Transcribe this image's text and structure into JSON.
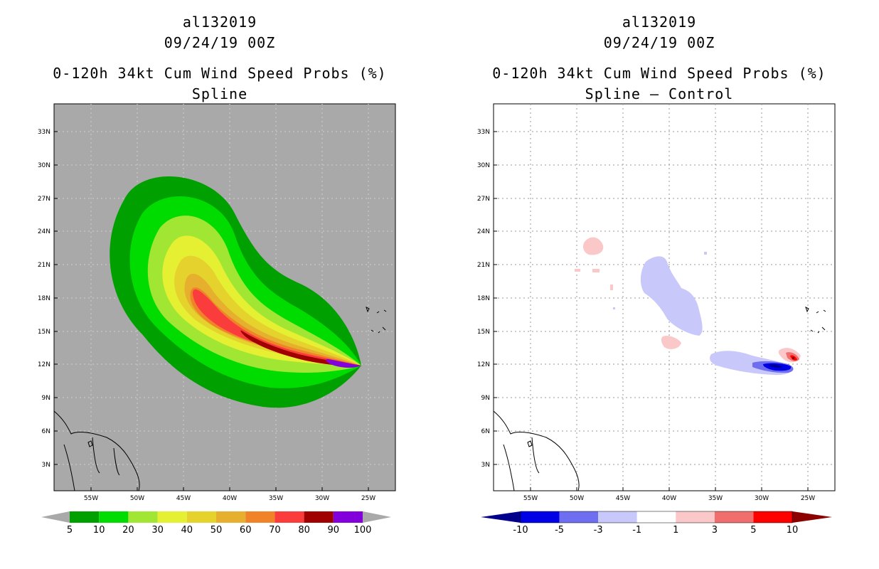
{
  "left_panel": {
    "storm_id": "al132019",
    "datetime": "09/24/19 00Z",
    "product": "0-120h 34kt Cum Wind Speed Probs (%)",
    "subtitle": "Spline",
    "background_color": "#a9a9a9",
    "colorbar": {
      "labels": [
        "5",
        "10",
        "20",
        "30",
        "40",
        "50",
        "60",
        "70",
        "80",
        "90",
        "100"
      ],
      "colors": [
        "#00a000",
        "#00dc00",
        "#a0e632",
        "#e6f032",
        "#e6d22c",
        "#e6af2d",
        "#f08228",
        "#fa3c3c",
        "#a00000",
        "#8200dc"
      ],
      "end_arrow_color": "#a9a9a9"
    }
  },
  "right_panel": {
    "storm_id": "al132019",
    "datetime": "09/24/19 00Z",
    "product": "0-120h 34kt Cum Wind Speed Probs (%)",
    "subtitle": "Spline – Control",
    "background_color": "#ffffff",
    "colorbar": {
      "labels": [
        "-10",
        "-5",
        "-3",
        "-1",
        "1",
        "3",
        "5",
        "10"
      ],
      "colors": [
        "#0000e6",
        "#6e6ef0",
        "#c8c8fa",
        "#ffffff",
        "#fac8c8",
        "#f06e6e",
        "#ff0000"
      ],
      "low_arrow_color": "#00008c",
      "high_arrow_color": "#8c0000"
    }
  },
  "map": {
    "lat_ticks": [
      "33N",
      "30N",
      "27N",
      "24N",
      "21N",
      "18N",
      "15N",
      "12N",
      "9N",
      "6N",
      "3N"
    ],
    "lon_ticks": [
      "55W",
      "50W",
      "45W",
      "40W",
      "35W",
      "30W",
      "25W"
    ]
  }
}
